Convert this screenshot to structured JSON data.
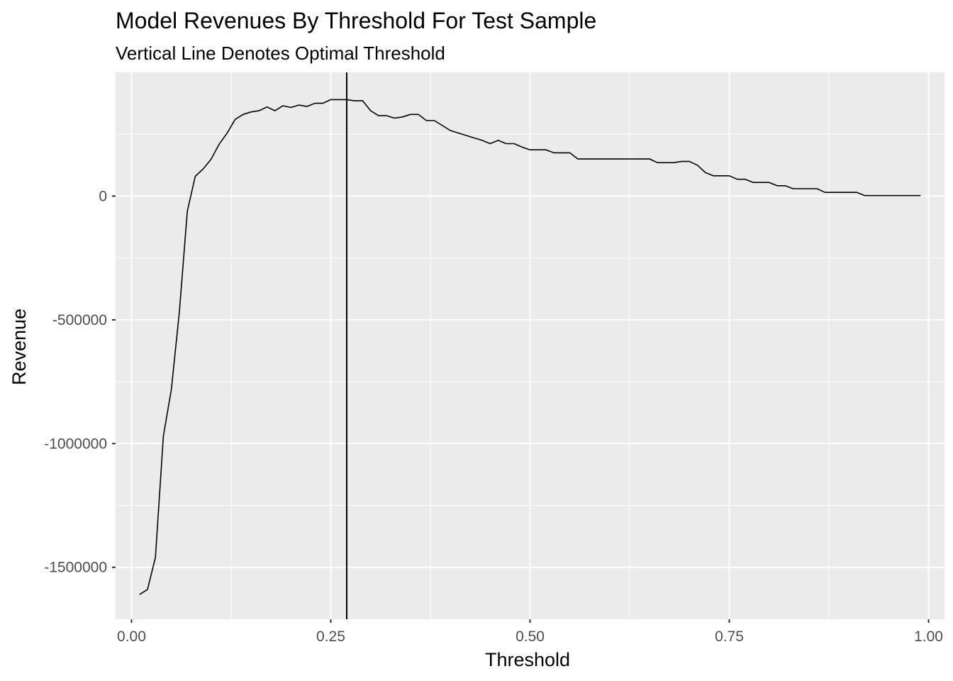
{
  "chart_data": {
    "type": "line",
    "title": "Model Revenues By Threshold For Test Sample",
    "subtitle": "Vertical Line Denotes Optimal Threshold",
    "xlabel": "Threshold",
    "ylabel": "Revenue",
    "xlim": [
      -0.02,
      1.02
    ],
    "ylim": [
      -1710000,
      500000
    ],
    "x_ticks": [
      0.0,
      0.25,
      0.5,
      0.75,
      1.0
    ],
    "x_tick_labels": [
      "0.00",
      "0.25",
      "0.50",
      "0.75",
      "1.00"
    ],
    "y_ticks": [
      0,
      -500000,
      -1000000,
      -1500000
    ],
    "y_tick_labels": [
      "0",
      "-500000",
      "-1000000",
      "-1500000"
    ],
    "grid": true,
    "legend": "none",
    "background_color": "#ebebeb",
    "grid_color": "#ffffff",
    "line_color": "#000000",
    "optimal_threshold": 0.27,
    "series": [
      {
        "x": [
          0.01,
          0.02,
          0.03,
          0.04,
          0.05,
          0.06,
          0.07,
          0.08,
          0.09,
          0.1,
          0.11,
          0.12,
          0.13,
          0.14,
          0.15,
          0.16,
          0.17,
          0.18,
          0.19,
          0.2,
          0.21,
          0.22,
          0.23,
          0.24,
          0.25,
          0.26,
          0.27,
          0.28,
          0.29,
          0.3,
          0.31,
          0.32,
          0.33,
          0.34,
          0.35,
          0.36,
          0.37,
          0.38,
          0.39,
          0.4,
          0.41,
          0.42,
          0.43,
          0.44,
          0.45,
          0.46,
          0.47,
          0.48,
          0.49,
          0.5,
          0.51,
          0.52,
          0.53,
          0.54,
          0.55,
          0.56,
          0.57,
          0.58,
          0.59,
          0.6,
          0.61,
          0.62,
          0.63,
          0.64,
          0.65,
          0.66,
          0.67,
          0.68,
          0.69,
          0.7,
          0.71,
          0.72,
          0.73,
          0.74,
          0.75,
          0.76,
          0.77,
          0.78,
          0.79,
          0.8,
          0.81,
          0.82,
          0.83,
          0.84,
          0.85,
          0.86,
          0.87,
          0.88,
          0.89,
          0.9,
          0.91,
          0.92,
          0.93,
          0.94,
          0.95,
          0.96,
          0.97,
          0.98,
          0.99
        ],
        "y": [
          -1610000,
          -1590000,
          -1460000,
          -970000,
          -780000,
          -470000,
          -60000,
          80000,
          110000,
          150000,
          210000,
          255000,
          310000,
          330000,
          340000,
          345000,
          360000,
          345000,
          365000,
          358000,
          368000,
          362000,
          375000,
          375000,
          390000,
          390000,
          390000,
          385000,
          385000,
          345000,
          325000,
          325000,
          315000,
          320000,
          330000,
          330000,
          305000,
          305000,
          285000,
          265000,
          255000,
          245000,
          235000,
          225000,
          212000,
          225000,
          212000,
          212000,
          198000,
          187000,
          187000,
          187000,
          175000,
          175000,
          175000,
          150000,
          150000,
          150000,
          150000,
          150000,
          150000,
          150000,
          150000,
          150000,
          150000,
          135000,
          135000,
          135000,
          140000,
          140000,
          125000,
          95000,
          82000,
          82000,
          82000,
          68000,
          68000,
          55000,
          55000,
          55000,
          42000,
          42000,
          30000,
          30000,
          30000,
          30000,
          15000,
          15000,
          15000,
          15000,
          15000,
          2000,
          2000,
          2000,
          2000,
          2000,
          2000,
          2000,
          2000
        ]
      }
    ]
  }
}
